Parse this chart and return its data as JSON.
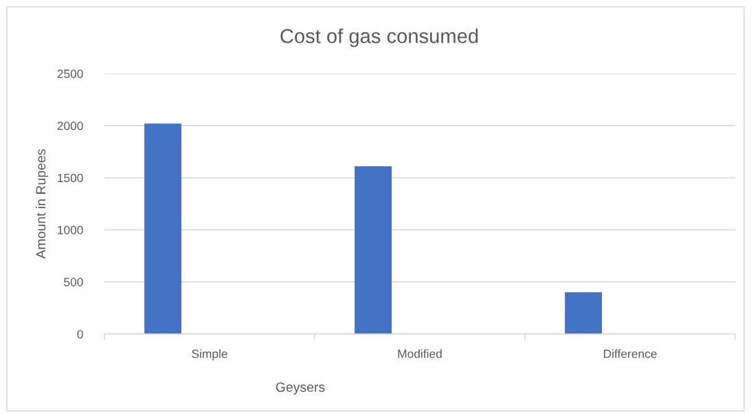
{
  "chart_data": {
    "type": "bar",
    "title": "Cost of gas consumed",
    "xlabel": "Geysers",
    "ylabel": "Amount in Rupees",
    "categories": [
      "Simple",
      "Modified",
      "Difference"
    ],
    "values": [
      2020,
      1610,
      400
    ],
    "color": "#4472c4",
    "ylim": [
      0,
      2500
    ],
    "yticks": [
      0,
      500,
      1000,
      1500,
      2000,
      2500
    ],
    "grid": "y"
  }
}
